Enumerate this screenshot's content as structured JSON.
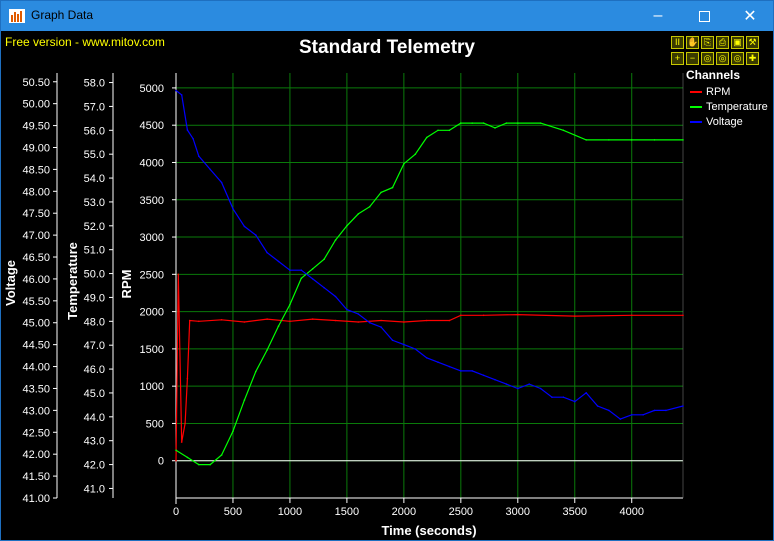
{
  "window": {
    "title": "Graph Data",
    "minimize_icon": "minimize-icon",
    "maximize_icon": "maximize-icon",
    "close_icon": "close-icon"
  },
  "watermark": "Free version - www.mitov.com",
  "toolbar": {
    "row1_icons": [
      "pause-icon",
      "hand-icon",
      "copy-icon",
      "print-icon",
      "save-icon",
      "settings-icon"
    ],
    "row2_icons": [
      "zoom-in-icon",
      "zoom-out-icon",
      "zoom-fit-icon",
      "zoom-all-icon",
      "zoom-region-icon",
      "add-icon"
    ]
  },
  "legend": {
    "title": "Channels",
    "items": [
      {
        "label": "RPM",
        "color": "#ff0000"
      },
      {
        "label": "Temperature",
        "color": "#00ff00"
      },
      {
        "label": "Voltage",
        "color": "#0000ff"
      }
    ]
  },
  "chart_data": {
    "type": "line",
    "title": "Standard Telemetry",
    "xlabel": "Time (seconds)",
    "xlim": [
      0,
      4450
    ],
    "x_ticks": [
      "0",
      "500",
      "1000",
      "1500",
      "2000",
      "2500",
      "3000",
      "3500",
      "4000"
    ],
    "grid": true,
    "legend_placement": "top-right",
    "axes": {
      "rpm": {
        "label": "RPM",
        "ylim": [
          -500,
          5200
        ],
        "ticks": [
          "0",
          "500",
          "1000",
          "1500",
          "2000",
          "2500",
          "3000",
          "3500",
          "4000",
          "4500",
          "5000"
        ]
      },
      "temperature": {
        "label": "Temperature",
        "ylim": [
          40.6,
          58.4
        ],
        "ticks": [
          "41.0",
          "42.0",
          "43.0",
          "44.0",
          "45.0",
          "46.0",
          "47.0",
          "48.0",
          "49.0",
          "50.0",
          "51.0",
          "52.0",
          "53.0",
          "54.0",
          "55.0",
          "56.0",
          "57.0",
          "58.0"
        ]
      },
      "voltage": {
        "label": "Voltage",
        "ylim": [
          41.0,
          50.7
        ],
        "ticks": [
          "41.00",
          "41.50",
          "42.00",
          "42.50",
          "43.00",
          "43.50",
          "44.00",
          "44.50",
          "45.00",
          "45.50",
          "46.00",
          "46.50",
          "47.00",
          "47.50",
          "48.00",
          "48.50",
          "49.00",
          "49.50",
          "50.00",
          "50.50"
        ]
      }
    },
    "series": [
      {
        "name": "RPM",
        "color": "#ff0000",
        "x": [
          0,
          20,
          50,
          80,
          100,
          120,
          200,
          400,
          600,
          800,
          1000,
          1200,
          1400,
          1600,
          1800,
          2000,
          2200,
          2400,
          2500,
          2700,
          3000,
          3500,
          4000,
          4450
        ],
        "y": [
          0,
          2500,
          250,
          500,
          1100,
          1880,
          1870,
          1890,
          1860,
          1900,
          1870,
          1900,
          1880,
          1860,
          1880,
          1860,
          1880,
          1880,
          1950,
          1950,
          1960,
          1940,
          1950,
          1950
        ]
      },
      {
        "name": "Temperature",
        "color": "#00ff00",
        "x": [
          0,
          100,
          200,
          300,
          400,
          500,
          600,
          700,
          800,
          900,
          1000,
          1100,
          1200,
          1300,
          1400,
          1500,
          1600,
          1700,
          1800,
          1900,
          2000,
          2100,
          2200,
          2300,
          2400,
          2500,
          2600,
          2700,
          2800,
          2900,
          3000,
          3200,
          3400,
          3600,
          3800,
          4000,
          4200,
          4450
        ],
        "y": [
          42.6,
          42.3,
          42.0,
          42.0,
          42.4,
          43.4,
          44.7,
          45.9,
          46.8,
          47.8,
          48.7,
          49.8,
          50.2,
          50.6,
          51.4,
          52.0,
          52.5,
          52.8,
          53.4,
          53.6,
          54.6,
          55.0,
          55.7,
          56.0,
          56.0,
          56.3,
          56.3,
          56.3,
          56.1,
          56.3,
          56.3,
          56.3,
          56.0,
          55.6,
          55.6,
          55.6,
          55.6,
          55.6
        ]
      },
      {
        "name": "Voltage",
        "color": "#0000ff",
        "x": [
          0,
          50,
          100,
          150,
          200,
          300,
          400,
          500,
          600,
          700,
          800,
          900,
          1000,
          1100,
          1200,
          1300,
          1400,
          1500,
          1600,
          1700,
          1800,
          1900,
          2000,
          2100,
          2200,
          2300,
          2400,
          2500,
          2600,
          2700,
          2800,
          2900,
          3000,
          3100,
          3200,
          3300,
          3400,
          3500,
          3600,
          3700,
          3800,
          3900,
          4000,
          4100,
          4200,
          4300,
          4450
        ],
        "y": [
          50.3,
          50.2,
          49.4,
          49.2,
          48.8,
          48.5,
          48.2,
          47.6,
          47.2,
          47.0,
          46.6,
          46.4,
          46.2,
          46.2,
          46.0,
          45.8,
          45.6,
          45.3,
          45.2,
          45.0,
          44.9,
          44.6,
          44.5,
          44.4,
          44.2,
          44.1,
          44.0,
          43.9,
          43.9,
          43.8,
          43.7,
          43.6,
          43.5,
          43.6,
          43.5,
          43.3,
          43.3,
          43.2,
          43.4,
          43.1,
          43.0,
          42.8,
          42.9,
          42.9,
          43.0,
          43.0,
          43.1
        ]
      }
    ]
  }
}
